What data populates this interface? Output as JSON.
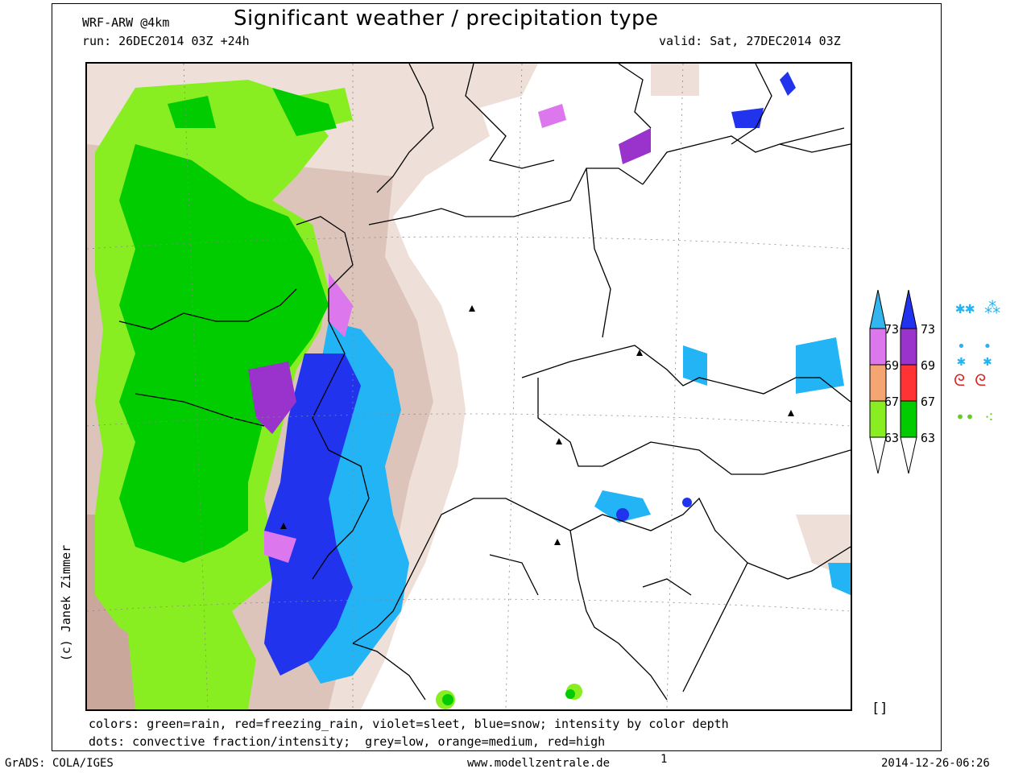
{
  "header": {
    "model": "WRF-ARW @4km",
    "title": "Significant weather / precipitation type",
    "run": "run: 26DEC2014 03Z +24h",
    "valid": "valid: Sat, 27DEC2014 03Z"
  },
  "credit": "(c) Janek Zimmer",
  "legend": {
    "line1": "colors: green=rain, red=freezing_rain, violet=sleet, blue=snow; intensity by color depth",
    "line2": "dots: convective fraction/intensity;  grey=low, orange=medium, red=high"
  },
  "colorbar_left": {
    "labels": [
      "73",
      "69",
      "67",
      "63"
    ],
    "colors": [
      "#33b5f0",
      "#dd77ee",
      "#f4a572",
      "#88ee22"
    ]
  },
  "colorbar_right": {
    "labels": [
      "73",
      "69",
      "67",
      "63"
    ],
    "colors": [
      "#2233ee",
      "#9933cc",
      "#ff3333",
      "#00cc00"
    ]
  },
  "symbols": [
    "snow-showers-icon",
    "light-snow-icon",
    "freezing-rain-icon",
    "rain-icon"
  ],
  "colors": {
    "rain": "#00cc00",
    "rain_light": "#88ee22",
    "snow": "#2233ee",
    "snow_light": "#22b4f5",
    "sleet": "#cc66dd",
    "cloud": "#e8d8d0",
    "cloud_dark": "#c8aa9e"
  },
  "bracket": "[]",
  "footer": {
    "left": "GrADS: COLA/IGES",
    "center": "www.modellzentrale.de",
    "page": "1",
    "right": "2014-12-26-06:26"
  }
}
